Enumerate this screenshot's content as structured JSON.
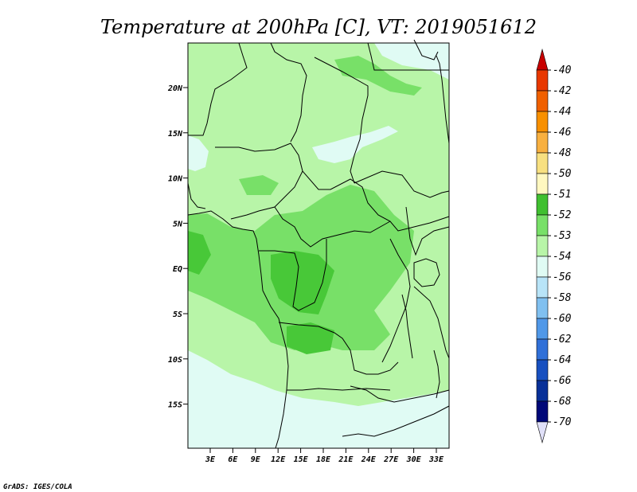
{
  "title": "Temperature at 200hPa [C], VT: 2019051612",
  "credit": "GrADS: IGES/COLA",
  "map": {
    "lat_labels": [
      "20N",
      "15N",
      "10N",
      "5N",
      "EQ",
      "5S",
      "10S",
      "15S"
    ],
    "lon_labels": [
      "3E",
      "6E",
      "9E",
      "12E",
      "15E",
      "18E",
      "21E",
      "24E",
      "27E",
      "30E",
      "33E"
    ],
    "field_colors": {
      "base": "#b8f5a8",
      "cool": "#e0fbf4",
      "warm": "#78e068",
      "warmest": "#48c838"
    },
    "coastline_color": "#000000"
  },
  "colorbar": {
    "labels": [
      "-40",
      "-42",
      "-44",
      "-46",
      "-48",
      "-50",
      "-51",
      "-52",
      "-53",
      "-54",
      "-56",
      "-58",
      "-60",
      "-62",
      "-64",
      "-66",
      "-68",
      "-70"
    ],
    "colors": [
      "#c80000",
      "#e83800",
      "#f06000",
      "#f89000",
      "#f8b040",
      "#f8e080",
      "#fff8c0",
      "#40c030",
      "#78e068",
      "#b8f5a8",
      "#e0fbf4",
      "#b8e4f8",
      "#80c0f0",
      "#5098e8",
      "#3070d8",
      "#1850c0",
      "#083098",
      "#000878",
      "#e0e0f8"
    ]
  }
}
